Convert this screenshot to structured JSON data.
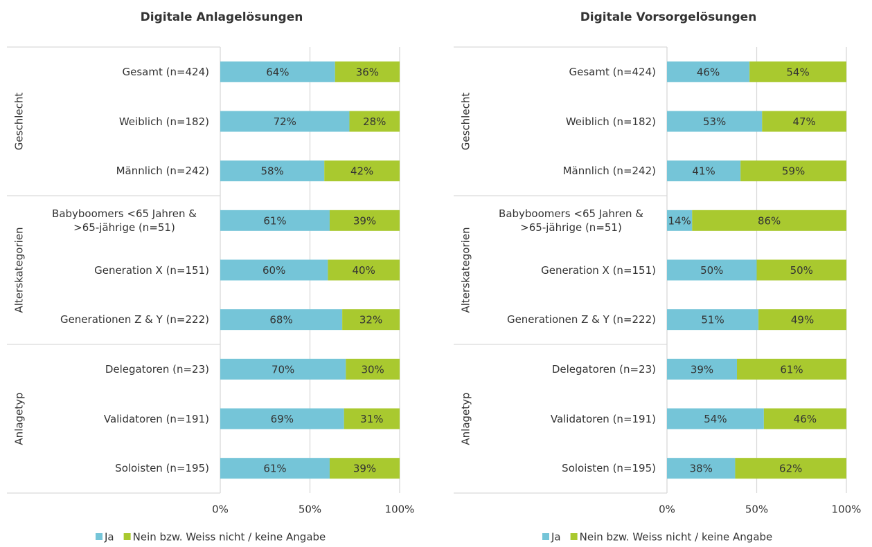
{
  "chart_data": [
    {
      "type": "stacked-bar-horizontal",
      "title": "Digitale Anlagelösungen",
      "groups": [
        {
          "label": "Geschlecht",
          "categories": [
            "Gesamt (n=424)",
            "Weiblich (n=182)",
            "Männlich (n=242)"
          ]
        },
        {
          "label": "Alterskategorien",
          "categories": [
            "Babyboomers <65 Jahren & >65-jährige (n=51)",
            "Generation X (n=151)",
            "Generationen Z & Y (n=222)"
          ]
        },
        {
          "label": "Anlagetyp",
          "categories": [
            "Delegatoren (n=23)",
            "Validatoren (n=191)",
            "Soloisten (n=195)"
          ]
        }
      ],
      "series": [
        {
          "name": "Ja",
          "color": "#75c5d8",
          "values": [
            64,
            72,
            58,
            61,
            60,
            68,
            70,
            69,
            61
          ],
          "value_labels": [
            "64%",
            "72%",
            "58%",
            "61%",
            "60%",
            "68%",
            "70%",
            "69%",
            "61%"
          ]
        },
        {
          "name": "Nein bzw. Weiss nicht / keine Angabe",
          "color": "#a9c92f",
          "values": [
            36,
            28,
            42,
            39,
            40,
            32,
            30,
            31,
            39
          ],
          "value_labels": [
            "36%",
            "28%",
            "42%",
            "39%",
            "40%",
            "32%",
            "30%",
            "31%",
            "39%"
          ]
        }
      ],
      "xlim": [
        0,
        100
      ],
      "xticks": [
        {
          "value": 0,
          "label": "0%"
        },
        {
          "value": 50,
          "label": "50%"
        },
        {
          "value": 100,
          "label": "100%"
        }
      ],
      "grid": true,
      "legend": "bottom"
    },
    {
      "type": "stacked-bar-horizontal",
      "title": "Digitale Vorsorgelösungen",
      "groups": [
        {
          "label": "Geschlecht",
          "categories": [
            "Gesamt (n=424)",
            "Weiblich (n=182)",
            "Männlich (n=242)"
          ]
        },
        {
          "label": "Alterskategorien",
          "categories": [
            "Babyboomers <65 Jahren & >65-jährige (n=51)",
            "Generation X (n=151)",
            "Generationen Z & Y (n=222)"
          ]
        },
        {
          "label": "Anlagetyp",
          "categories": [
            "Delegatoren (n=23)",
            "Validatoren (n=191)",
            "Soloisten (n=195)"
          ]
        }
      ],
      "series": [
        {
          "name": "Ja",
          "color": "#75c5d8",
          "values": [
            46,
            53,
            41,
            14,
            50,
            51,
            39,
            54,
            38
          ],
          "value_labels": [
            "46%",
            "53%",
            "41%",
            "14%",
            "50%",
            "51%",
            "39%",
            "54%",
            "38%"
          ]
        },
        {
          "name": "Nein bzw. Weiss nicht / keine Angabe",
          "color": "#a9c92f",
          "values": [
            54,
            47,
            59,
            86,
            50,
            49,
            61,
            46,
            62
          ],
          "value_labels": [
            "54%",
            "47%",
            "59%",
            "86%",
            "50%",
            "49%",
            "61%",
            "46%",
            "62%"
          ]
        }
      ],
      "xlim": [
        0,
        100
      ],
      "xticks": [
        {
          "value": 0,
          "label": "0%"
        },
        {
          "value": 50,
          "label": "50%"
        },
        {
          "value": 100,
          "label": "100%"
        }
      ],
      "grid": true,
      "legend": "bottom"
    }
  ]
}
